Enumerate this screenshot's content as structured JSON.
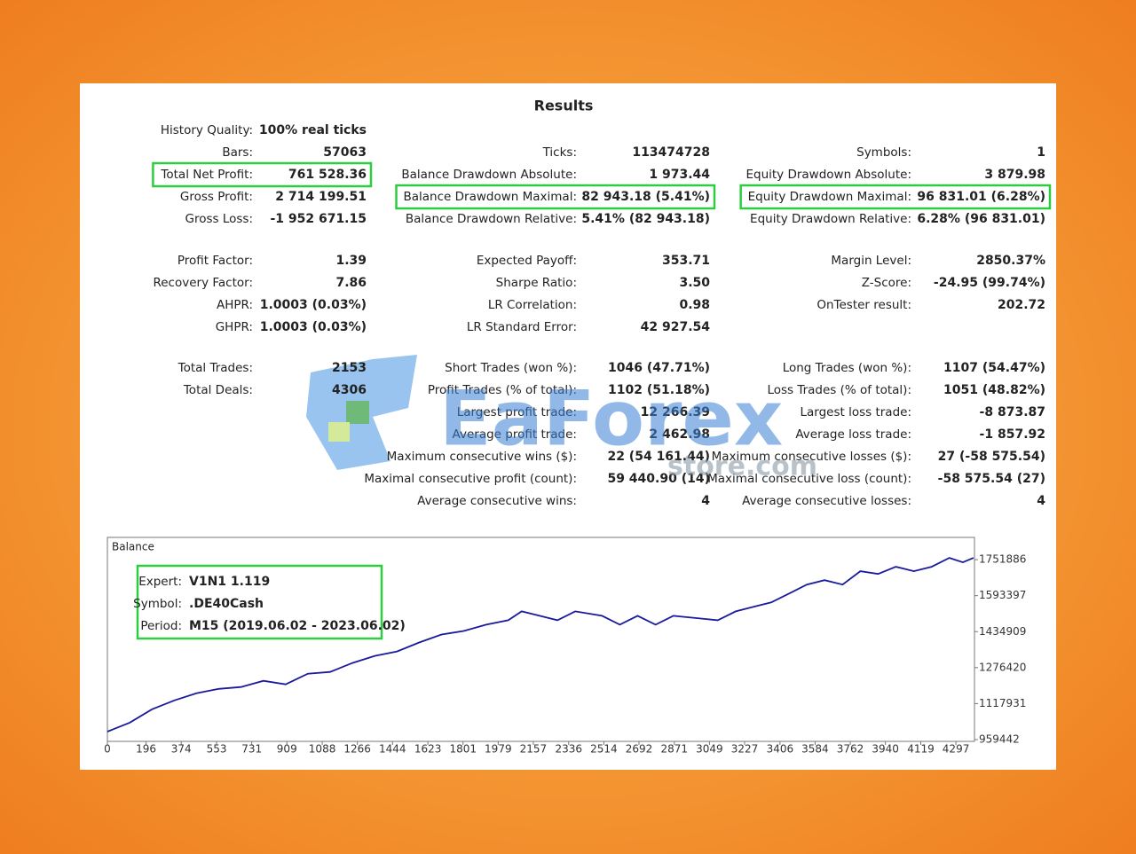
{
  "results": {
    "title": "Results",
    "groups": [
      [
        [
          {
            "label": "History Quality:",
            "value": "100% real ticks"
          },
          null,
          null
        ],
        [
          {
            "label": "Bars:",
            "value": "57063"
          },
          {
            "label": "Ticks:",
            "value": "113474728"
          },
          {
            "label": "Symbols:",
            "value": "1"
          }
        ],
        [
          {
            "label": "Total Net Profit:",
            "value": "761 528.36",
            "highlight": true
          },
          {
            "label": "Balance Drawdown Absolute:",
            "value": "1 973.44"
          },
          {
            "label": "Equity Drawdown Absolute:",
            "value": "3 879.98"
          }
        ],
        [
          {
            "label": "Gross Profit:",
            "value": "2 714 199.51"
          },
          {
            "label": "Balance Drawdown Maximal:",
            "value": "82 943.18 (5.41%)",
            "highlight": true
          },
          {
            "label": "Equity Drawdown Maximal:",
            "value": "96 831.01 (6.28%)",
            "highlight": true
          }
        ],
        [
          {
            "label": "Gross Loss:",
            "value": "-1 952 671.15"
          },
          {
            "label": "Balance Drawdown Relative:",
            "value": "5.41% (82 943.18)"
          },
          {
            "label": "Equity Drawdown Relative:",
            "value": "6.28% (96 831.01)"
          }
        ]
      ],
      [
        [
          {
            "label": "Profit Factor:",
            "value": "1.39"
          },
          {
            "label": "Expected Payoff:",
            "value": "353.71"
          },
          {
            "label": "Margin Level:",
            "value": "2850.37%"
          }
        ],
        [
          {
            "label": "Recovery Factor:",
            "value": "7.86"
          },
          {
            "label": "Sharpe Ratio:",
            "value": "3.50"
          },
          {
            "label": "Z-Score:",
            "value": "-24.95 (99.74%)"
          }
        ],
        [
          {
            "label": "AHPR:",
            "value": "1.0003 (0.03%)"
          },
          {
            "label": "LR Correlation:",
            "value": "0.98"
          },
          {
            "label": "OnTester result:",
            "value": "202.72"
          }
        ],
        [
          {
            "label": "GHPR:",
            "value": "1.0003 (0.03%)"
          },
          {
            "label": "LR Standard Error:",
            "value": "42 927.54"
          },
          null
        ]
      ],
      [
        [
          {
            "label": "Total Trades:",
            "value": "2153"
          },
          {
            "label": "Short Trades (won %):",
            "value": "1046 (47.71%)"
          },
          {
            "label": "Long Trades (won %):",
            "value": "1107 (54.47%)"
          }
        ],
        [
          {
            "label": "Total Deals:",
            "value": "4306"
          },
          {
            "label": "Profit Trades (% of total):",
            "value": "1102 (51.18%)"
          },
          {
            "label": "Loss Trades (% of total):",
            "value": "1051 (48.82%)"
          }
        ],
        [
          null,
          {
            "label": "Largest profit trade:",
            "value": "12 266.39"
          },
          {
            "label": "Largest loss trade:",
            "value": "-8 873.87"
          }
        ],
        [
          null,
          {
            "label": "Average profit trade:",
            "value": "2 462.98"
          },
          {
            "label": "Average loss trade:",
            "value": "-1 857.92"
          }
        ],
        [
          null,
          {
            "label": "Maximum consecutive wins ($):",
            "value": "22 (54 161.44)"
          },
          {
            "label": "Maximum consecutive losses ($):",
            "value": "27 (-58 575.54)"
          }
        ],
        [
          null,
          {
            "label": "Maximal consecutive profit (count):",
            "value": "59 440.90 (14)"
          },
          {
            "label": "Maximal consecutive loss (count):",
            "value": "-58 575.54 (27)"
          }
        ],
        [
          null,
          {
            "label": "Average consecutive wins:",
            "value": "4"
          },
          {
            "label": "Average consecutive losses:",
            "value": "4"
          }
        ]
      ]
    ]
  },
  "watermark": {
    "text": "EaForex",
    "subtext": "store.com"
  },
  "chart_data": {
    "type": "line",
    "title": "Balance",
    "info": [
      {
        "label": "Expert:",
        "value": "V1N1 1.119"
      },
      {
        "label": "Symbol:",
        "value": ".DE40Cash"
      },
      {
        "label": "Period:",
        "value": "M15 (2019.06.02 - 2023.06.02)"
      }
    ],
    "x": [
      0,
      113,
      226,
      339,
      451,
      564,
      677,
      790,
      903,
      1015,
      1128,
      1241,
      1354,
      1467,
      1579,
      1692,
      1805,
      1918,
      2030,
      2098,
      2189,
      2279,
      2369,
      2505,
      2595,
      2685,
      2776,
      2866,
      3001,
      3091,
      3182,
      3272,
      3362,
      3452,
      3542,
      3632,
      3723,
      3813,
      3903,
      3993,
      4084,
      4174,
      4264,
      4332,
      4386
    ],
    "series": [
      {
        "name": "Balance",
        "color": "#1a1a9c",
        "values": [
          994750,
          1034000,
          1092800,
          1132000,
          1163400,
          1183000,
          1190900,
          1218300,
          1202700,
          1249700,
          1257600,
          1296800,
          1328200,
          1347800,
          1387000,
          1422400,
          1438000,
          1465500,
          1485100,
          1524300,
          1504700,
          1485100,
          1524300,
          1504700,
          1465500,
          1504700,
          1465500,
          1504700,
          1493000,
          1485100,
          1524300,
          1544000,
          1563600,
          1602800,
          1642000,
          1661700,
          1642000,
          1700900,
          1689100,
          1720500,
          1700900,
          1720500,
          1759700,
          1740100,
          1759700
        ]
      }
    ],
    "xlim": [
      0,
      4391
    ],
    "ylim": [
      951600,
      1849900
    ],
    "xticks": [
      0,
      196,
      374,
      553,
      731,
      909,
      1088,
      1266,
      1444,
      1623,
      1801,
      1979,
      2157,
      2336,
      2514,
      2692,
      2871,
      3049,
      3227,
      3406,
      3584,
      3762,
      3940,
      4119,
      4297
    ],
    "yticks": [
      959442,
      1117931,
      1276420,
      1434909,
      1593397,
      1751886
    ]
  }
}
